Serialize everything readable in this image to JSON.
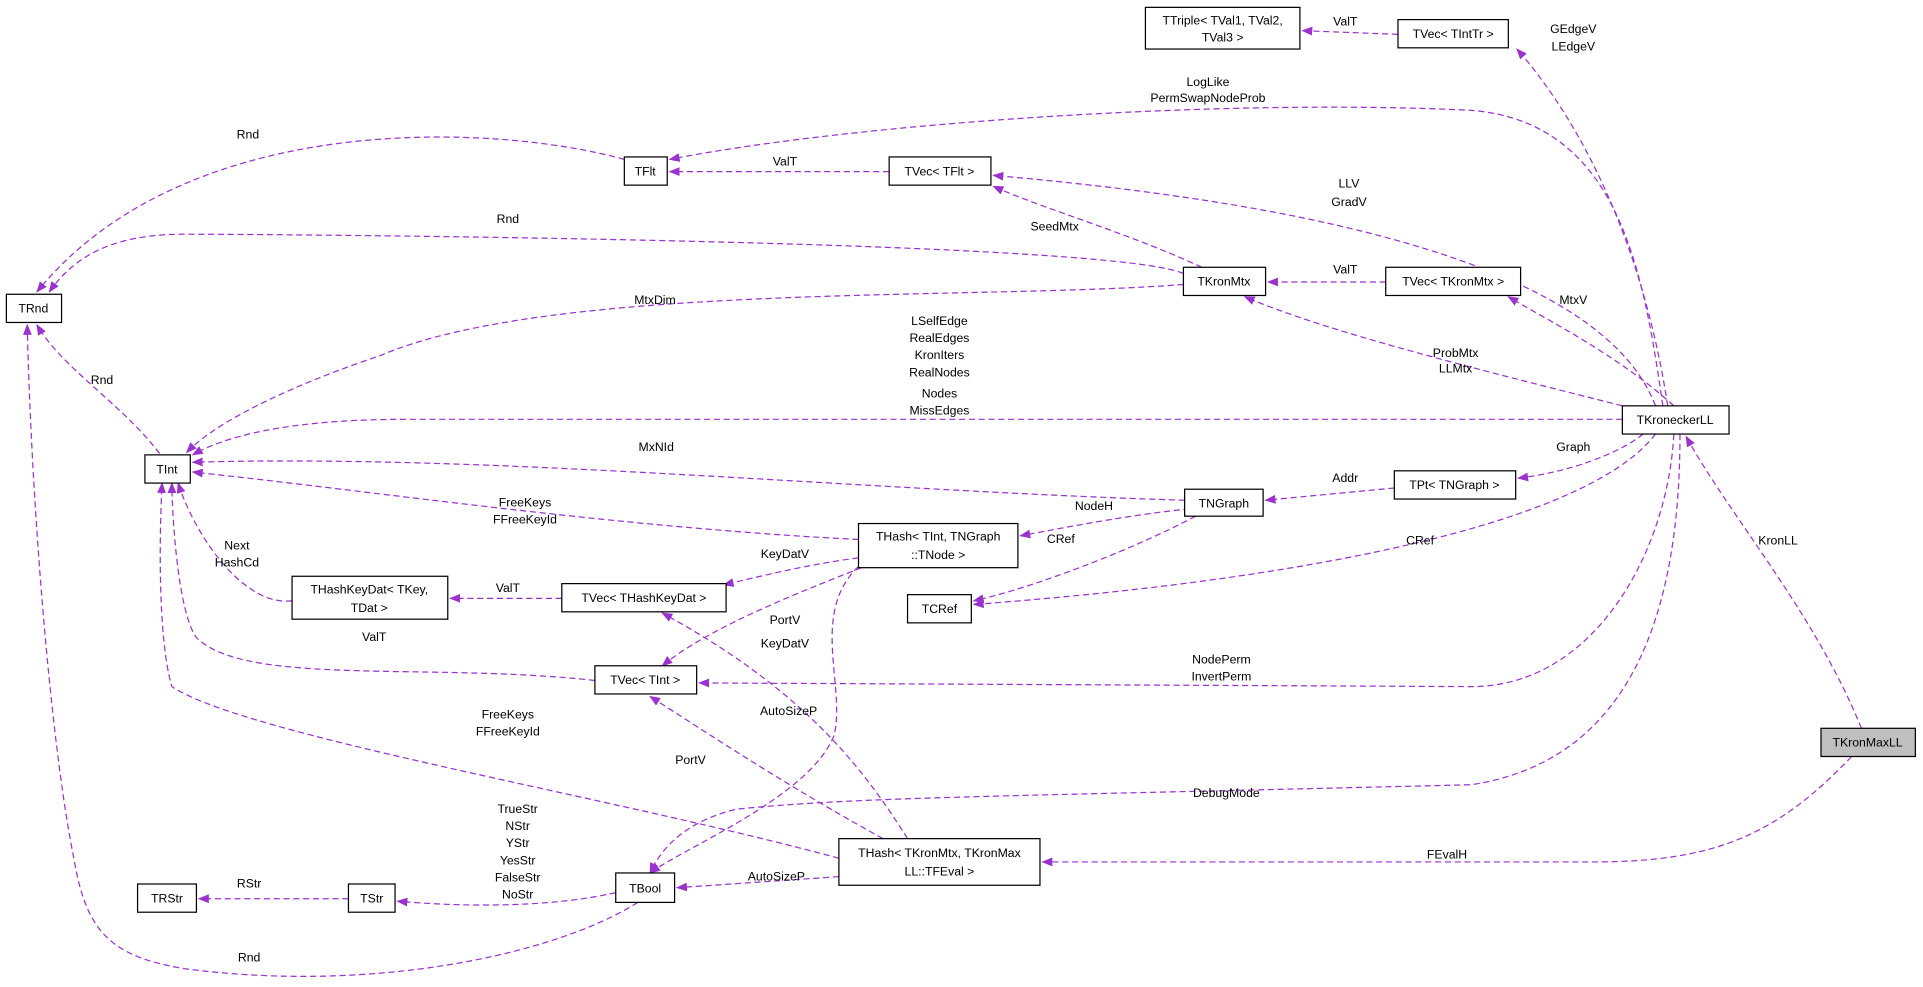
{
  "colors": {
    "edge": "#9a32cd",
    "highlighted_node_fill": "#bfbfbf",
    "node_border": "#000000"
  },
  "nodes": {
    "ttriple": [
      "TTriple< TVal1, TVal2,",
      "TVal3 >"
    ],
    "tvec_inttr": "TVec< TIntTr >",
    "tflt": "TFlt",
    "tvec_flt": "TVec< TFlt >",
    "trnd": "TRnd",
    "tkronmtx": "TKronMtx",
    "tvec_kronmtx": "TVec< TKronMtx >",
    "tkroneckerll": "TKroneckerLL",
    "tint": "TInt",
    "tngraph": "TNGraph",
    "tpt_ngraph": "TPt< TNGraph >",
    "thash_int_ngraph": [
      "THash< TInt, TNGraph",
      "::TNode >"
    ],
    "tcref": "TCRef",
    "thashkeydat": [
      "THashKeyDat< TKey,",
      "TDat >"
    ],
    "tvec_hashkeydat": "TVec< THashKeyDat >",
    "tvec_int": "TVec< TInt >",
    "tkronmaxll": "TKronMaxLL",
    "tbool": "TBool",
    "thash_kronmtx": [
      "THash< TKronMtx, TKronMax",
      "LL::TFEval >"
    ],
    "trstr": "TRStr",
    "tstr": "TStr"
  },
  "edge_labels": {
    "intr_triple": [
      "ValT"
    ],
    "kll_intr": [
      "GEdgeV",
      "LEdgeV"
    ],
    "kll_flt": [
      "LogLike",
      "PermSwapNodeProb"
    ],
    "vflt_flt": [
      "ValT"
    ],
    "flt_rnd": [
      "Rnd"
    ],
    "kll_vflt": [
      "LLV",
      "GradV"
    ],
    "kmtx_vflt": [
      "SeedMtx"
    ],
    "kmtx_rnd": [
      "Rnd"
    ],
    "vkm_kmtx": [
      "ValT"
    ],
    "kll_vkm": [
      "MtxV"
    ],
    "kll_kmtx": [
      "ProbMtx",
      "LLMtx"
    ],
    "kmtx_int": [
      "MtxDim"
    ],
    "int_rnd": [
      "Rnd"
    ],
    "kll_int": [
      "LSelfEdge",
      "RealEdges",
      "KronIters",
      "RealNodes",
      "Nodes",
      "MissEdges"
    ],
    "ngraph_int": [
      "MxNId"
    ],
    "pt_ngraph": [
      "Addr"
    ],
    "kll_pt": [
      "Graph"
    ],
    "kll_cref": [
      "CRef"
    ],
    "ngraph_cref": [
      "CRef"
    ],
    "ngraph_hash": [
      "NodeH"
    ],
    "hash_int": [
      "FreeKeys",
      "FFreeKeyId"
    ],
    "hash_vhkd": [
      "KeyDatV"
    ],
    "hash_vint": [
      "PortV"
    ],
    "hash_bool": [
      "AutoSizeP"
    ],
    "vhkd_hkd": [
      "ValT"
    ],
    "hkd_int": [
      "Next",
      "HashCd"
    ],
    "vint_int": [
      "ValT"
    ],
    "kll_vint": [
      "NodePerm",
      "InvertPerm"
    ],
    "hkm_int": [
      "FreeKeys",
      "FFreeKeyId"
    ],
    "hkm_vint": [
      "PortV"
    ],
    "hkm_vhkd": [
      "KeyDatV"
    ],
    "hkm_bool": [
      "AutoSizeP"
    ],
    "kll_bool": [
      "DebugMode"
    ],
    "kml_hkm": [
      "FEvalH"
    ],
    "kml_kll": [
      "KronLL"
    ],
    "str_rstr": [
      "RStr"
    ],
    "bool_str": [
      "TrueStr",
      "NStr",
      "YStr",
      "YesStr",
      "FalseStr",
      "NoStr"
    ],
    "bool_rnd": [
      "Rnd"
    ]
  }
}
